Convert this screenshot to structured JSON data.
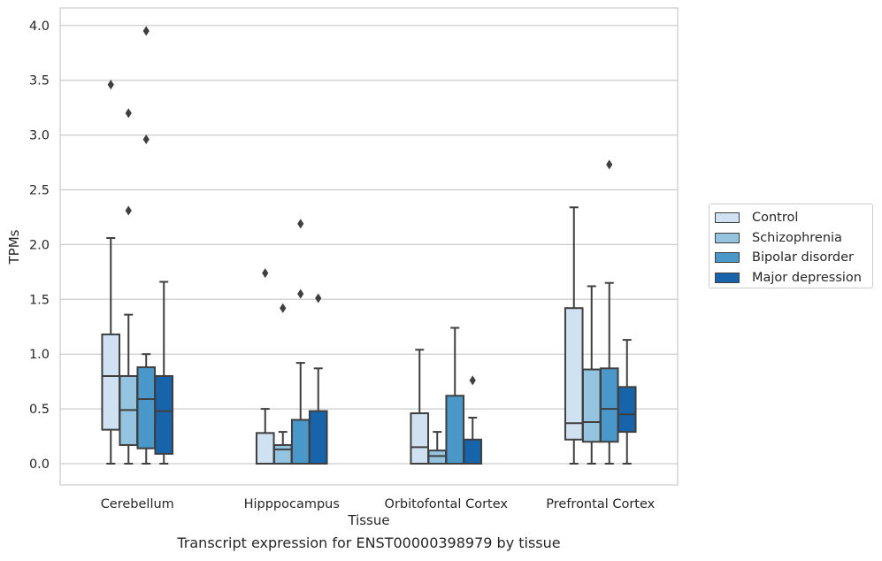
{
  "chart_data": {
    "type": "box",
    "caption": "Transcript expression for ENST00000398979 by tissue",
    "xlabel": "Tissue",
    "ylabel": "TPMs",
    "ylim": [
      -0.19,
      4.16
    ],
    "yticks": [
      "0.0",
      "0.5",
      "1.0",
      "1.5",
      "2.0",
      "2.5",
      "3.0",
      "3.5",
      "4.0"
    ],
    "categories": [
      "Cerebellum",
      "Hipppocampus",
      "Orbitofontal Cortex",
      "Prefrontal Cortex"
    ],
    "grid": "horizontal",
    "legend_position": "right",
    "series": [
      {
        "name": "Control",
        "color": "#d0e1f2",
        "boxes": [
          {
            "whisker_low": 0.0,
            "q1": 0.31,
            "median": 0.8,
            "q3": 1.18,
            "whisker_high": 2.06,
            "outliers": [
              3.46
            ]
          },
          {
            "whisker_low": 0.0,
            "q1": 0.0,
            "median": 0.0,
            "q3": 0.28,
            "whisker_high": 0.5,
            "outliers": [
              1.74
            ]
          },
          {
            "whisker_low": 0.0,
            "q1": 0.0,
            "median": 0.15,
            "q3": 0.46,
            "whisker_high": 1.04,
            "outliers": []
          },
          {
            "whisker_low": 0.0,
            "q1": 0.22,
            "median": 0.37,
            "q3": 1.42,
            "whisker_high": 2.34,
            "outliers": []
          }
        ]
      },
      {
        "name": "Schizophrenia",
        "color": "#94c4df",
        "boxes": [
          {
            "whisker_low": 0.0,
            "q1": 0.17,
            "median": 0.49,
            "q3": 0.8,
            "whisker_high": 1.36,
            "outliers": [
              3.2,
              2.31
            ]
          },
          {
            "whisker_low": 0.0,
            "q1": 0.0,
            "median": 0.13,
            "q3": 0.17,
            "whisker_high": 0.29,
            "outliers": [
              1.42
            ]
          },
          {
            "whisker_low": 0.0,
            "q1": 0.0,
            "median": 0.07,
            "q3": 0.12,
            "whisker_high": 0.29,
            "outliers": []
          },
          {
            "whisker_low": 0.0,
            "q1": 0.2,
            "median": 0.38,
            "q3": 0.86,
            "whisker_high": 1.62,
            "outliers": []
          }
        ]
      },
      {
        "name": "Bipolar disorder",
        "color": "#4a98c9",
        "boxes": [
          {
            "whisker_low": 0.0,
            "q1": 0.14,
            "median": 0.59,
            "q3": 0.88,
            "whisker_high": 1.0,
            "outliers": [
              3.95,
              2.96
            ]
          },
          {
            "whisker_low": 0.0,
            "q1": 0.0,
            "median": 0.0,
            "q3": 0.4,
            "whisker_high": 0.92,
            "outliers": [
              2.19,
              1.55
            ]
          },
          {
            "whisker_low": 0.0,
            "q1": 0.0,
            "median": 0.0,
            "q3": 0.62,
            "whisker_high": 1.24,
            "outliers": []
          },
          {
            "whisker_low": 0.0,
            "q1": 0.2,
            "median": 0.5,
            "q3": 0.87,
            "whisker_high": 1.65,
            "outliers": [
              2.73
            ]
          }
        ]
      },
      {
        "name": "Major depression",
        "color": "#1764ab",
        "boxes": [
          {
            "whisker_low": 0.0,
            "q1": 0.09,
            "median": 0.48,
            "q3": 0.8,
            "whisker_high": 1.66,
            "outliers": []
          },
          {
            "whisker_low": 0.0,
            "q1": 0.0,
            "median": 0.0,
            "q3": 0.48,
            "whisker_high": 0.87,
            "outliers": [
              1.51
            ]
          },
          {
            "whisker_low": 0.0,
            "q1": 0.0,
            "median": 0.0,
            "q3": 0.22,
            "whisker_high": 0.42,
            "outliers": [
              0.76
            ]
          },
          {
            "whisker_low": 0.0,
            "q1": 0.29,
            "median": 0.45,
            "q3": 0.7,
            "whisker_high": 1.13,
            "outliers": []
          }
        ]
      }
    ]
  }
}
